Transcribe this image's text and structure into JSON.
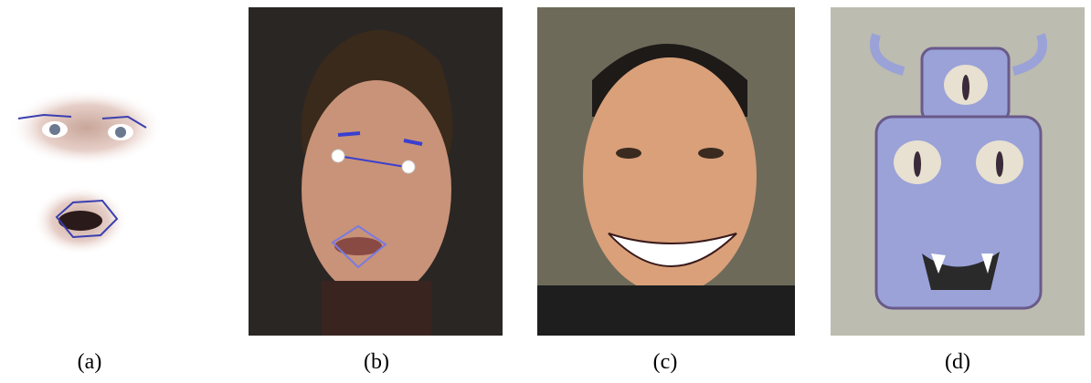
{
  "figure": {
    "captions": [
      "(a)",
      "(b)",
      "(c)",
      "(d)"
    ]
  },
  "panels": [
    {
      "id": "a",
      "depicts": "feature-crops",
      "marker_color": "#3a3fb0"
    },
    {
      "id": "b",
      "depicts": "annotated-face-photo",
      "marker_color": "#4a4ad0",
      "point_color": "#ffffff"
    },
    {
      "id": "c",
      "depicts": "smiling-face-photo"
    },
    {
      "id": "d",
      "depicts": "three-eyed-creature-drawing",
      "palette": [
        "#bcbcb0",
        "#9aa2d8",
        "#e8b8d8"
      ]
    }
  ]
}
